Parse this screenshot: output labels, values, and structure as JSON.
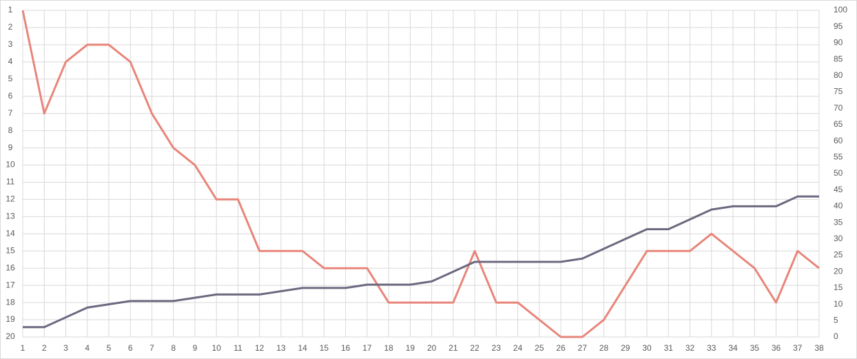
{
  "chart_data": {
    "type": "line",
    "x": [
      1,
      2,
      3,
      4,
      5,
      6,
      7,
      8,
      9,
      10,
      11,
      12,
      13,
      14,
      15,
      16,
      17,
      18,
      19,
      20,
      21,
      22,
      23,
      24,
      25,
      26,
      27,
      28,
      29,
      30,
      31,
      32,
      33,
      34,
      35,
      36,
      37,
      38
    ],
    "xlim": [
      1,
      38
    ],
    "xticks": [
      1,
      2,
      3,
      4,
      5,
      6,
      7,
      8,
      9,
      10,
      11,
      12,
      13,
      14,
      15,
      16,
      17,
      18,
      19,
      20,
      21,
      22,
      23,
      24,
      25,
      26,
      27,
      28,
      29,
      30,
      31,
      32,
      33,
      34,
      35,
      36,
      37,
      38
    ],
    "ylim": [
      1,
      20
    ],
    "yreverse": true,
    "yticks": [
      1,
      2,
      3,
      4,
      5,
      6,
      7,
      8,
      9,
      10,
      11,
      12,
      13,
      14,
      15,
      16,
      17,
      18,
      19,
      20
    ],
    "y2lim": [
      0,
      100
    ],
    "y2ticks": [
      0,
      5,
      10,
      15,
      20,
      25,
      30,
      35,
      40,
      45,
      50,
      55,
      60,
      65,
      70,
      75,
      80,
      85,
      90,
      95,
      100
    ],
    "grid": true,
    "series": [
      {
        "color": "#e8857a",
        "axis": "y",
        "values": [
          1,
          7,
          4,
          3,
          3,
          4,
          7,
          9,
          10,
          12,
          12,
          15,
          15,
          15,
          16,
          16,
          16,
          18,
          18,
          18,
          18,
          15,
          18,
          18,
          19,
          20,
          20,
          19,
          17,
          15,
          15,
          15,
          14,
          15,
          16,
          18,
          15,
          16
        ]
      },
      {
        "color": "#6d6880",
        "axis": "y2",
        "values": [
          3,
          3,
          6,
          9,
          10,
          11,
          11,
          11,
          12,
          13,
          13,
          13,
          14,
          15,
          15,
          15,
          16,
          16,
          16,
          17,
          20,
          23,
          23,
          23,
          23,
          23,
          24,
          27,
          30,
          33,
          33,
          36,
          39,
          40,
          40,
          40,
          43,
          43
        ]
      }
    ]
  }
}
